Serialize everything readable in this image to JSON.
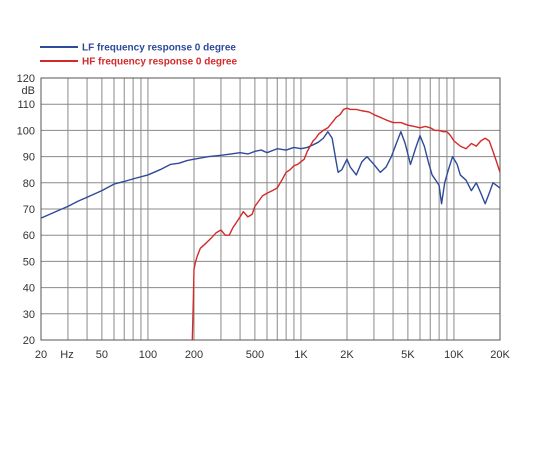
{
  "chart_data": {
    "type": "line",
    "title": "",
    "xlabel": "Hz",
    "ylabel": "dB",
    "x_scale": "log",
    "xlim": [
      20,
      20000
    ],
    "ylim": [
      20,
      120
    ],
    "grid": true,
    "legend_position": "top-left",
    "x_major_ticks": [
      {
        "value": 20,
        "label": "20"
      },
      {
        "value": 50,
        "label": "50"
      },
      {
        "value": 100,
        "label": "100"
      },
      {
        "value": 200,
        "label": "200"
      },
      {
        "value": 500,
        "label": "500"
      },
      {
        "value": 1000,
        "label": "1K"
      },
      {
        "value": 2000,
        "label": "2K"
      },
      {
        "value": 5000,
        "label": "5K"
      },
      {
        "value": 10000,
        "label": "10K"
      },
      {
        "value": 20000,
        "label": "20K"
      }
    ],
    "y_ticks": [
      20,
      30,
      40,
      50,
      60,
      70,
      80,
      90,
      100,
      110,
      120
    ],
    "series": [
      {
        "name": "LF frequency response 0 degree",
        "color": "#2e4a9a",
        "points": [
          [
            20,
            66.5
          ],
          [
            25,
            69
          ],
          [
            30,
            71
          ],
          [
            35,
            73
          ],
          [
            40,
            74.5
          ],
          [
            50,
            77
          ],
          [
            60,
            79.5
          ],
          [
            70,
            80.5
          ],
          [
            80,
            81.5
          ],
          [
            100,
            83
          ],
          [
            120,
            85
          ],
          [
            140,
            87
          ],
          [
            160,
            87.5
          ],
          [
            180,
            88.5
          ],
          [
            200,
            89
          ],
          [
            250,
            90
          ],
          [
            300,
            90.5
          ],
          [
            350,
            91
          ],
          [
            400,
            91.5
          ],
          [
            450,
            91
          ],
          [
            500,
            92
          ],
          [
            550,
            92.5
          ],
          [
            600,
            91.5
          ],
          [
            700,
            93
          ],
          [
            800,
            92.5
          ],
          [
            900,
            93.5
          ],
          [
            1000,
            93
          ],
          [
            1100,
            93.5
          ],
          [
            1200,
            94.5
          ],
          [
            1300,
            95.5
          ],
          [
            1400,
            97
          ],
          [
            1500,
            99.5
          ],
          [
            1600,
            97
          ],
          [
            1700,
            88
          ],
          [
            1750,
            84
          ],
          [
            1850,
            85
          ],
          [
            2000,
            89
          ],
          [
            2100,
            86
          ],
          [
            2300,
            83
          ],
          [
            2500,
            88
          ],
          [
            2700,
            90
          ],
          [
            3000,
            87
          ],
          [
            3300,
            84
          ],
          [
            3600,
            86
          ],
          [
            3900,
            90
          ],
          [
            4200,
            95
          ],
          [
            4500,
            99.5
          ],
          [
            4800,
            95
          ],
          [
            5200,
            87
          ],
          [
            5600,
            93
          ],
          [
            6000,
            98
          ],
          [
            6400,
            94
          ],
          [
            6800,
            88
          ],
          [
            7200,
            83
          ],
          [
            7600,
            81
          ],
          [
            8000,
            79
          ],
          [
            8300,
            72
          ],
          [
            8700,
            80
          ],
          [
            9200,
            85
          ],
          [
            9800,
            90
          ],
          [
            10500,
            87
          ],
          [
            11000,
            83
          ],
          [
            12000,
            81
          ],
          [
            13000,
            77
          ],
          [
            14000,
            80
          ],
          [
            15000,
            76
          ],
          [
            16000,
            72
          ],
          [
            17000,
            76
          ],
          [
            18000,
            80
          ],
          [
            19000,
            79
          ],
          [
            20000,
            78
          ]
        ]
      },
      {
        "name": "HF frequency response 0 degree",
        "color": "#d42a2a",
        "points": [
          [
            195,
            20
          ],
          [
            198,
            35
          ],
          [
            200,
            47
          ],
          [
            205,
            50
          ],
          [
            210,
            52
          ],
          [
            220,
            55
          ],
          [
            240,
            57
          ],
          [
            260,
            59
          ],
          [
            280,
            61
          ],
          [
            300,
            62
          ],
          [
            320,
            60
          ],
          [
            340,
            60
          ],
          [
            360,
            63
          ],
          [
            380,
            65
          ],
          [
            400,
            67
          ],
          [
            420,
            69
          ],
          [
            450,
            67
          ],
          [
            480,
            68
          ],
          [
            500,
            71
          ],
          [
            530,
            73
          ],
          [
            560,
            75
          ],
          [
            600,
            76
          ],
          [
            650,
            77
          ],
          [
            700,
            78
          ],
          [
            750,
            81
          ],
          [
            800,
            84
          ],
          [
            850,
            85
          ],
          [
            900,
            86.5
          ],
          [
            950,
            87
          ],
          [
            1000,
            88
          ],
          [
            1050,
            89
          ],
          [
            1100,
            92
          ],
          [
            1150,
            94
          ],
          [
            1200,
            96
          ],
          [
            1250,
            97
          ],
          [
            1300,
            98.5
          ],
          [
            1400,
            100
          ],
          [
            1500,
            101
          ],
          [
            1600,
            103
          ],
          [
            1700,
            105
          ],
          [
            1800,
            106
          ],
          [
            1900,
            108
          ],
          [
            2000,
            108.5
          ],
          [
            2100,
            108
          ],
          [
            2300,
            108
          ],
          [
            2500,
            107.5
          ],
          [
            2800,
            107
          ],
          [
            3000,
            106
          ],
          [
            3300,
            105
          ],
          [
            3600,
            104
          ],
          [
            4000,
            103
          ],
          [
            4500,
            103
          ],
          [
            5000,
            102
          ],
          [
            5500,
            101.5
          ],
          [
            6000,
            101
          ],
          [
            6500,
            101.5
          ],
          [
            7000,
            101
          ],
          [
            7500,
            100
          ],
          [
            8000,
            100
          ],
          [
            8500,
            99.5
          ],
          [
            9000,
            99.5
          ],
          [
            9500,
            98
          ],
          [
            10000,
            96
          ],
          [
            11000,
            94
          ],
          [
            12000,
            93
          ],
          [
            13000,
            95
          ],
          [
            14000,
            94
          ],
          [
            15000,
            96
          ],
          [
            16000,
            97
          ],
          [
            17000,
            96
          ],
          [
            18000,
            92
          ],
          [
            19000,
            88
          ],
          [
            20000,
            84
          ]
        ]
      }
    ]
  }
}
